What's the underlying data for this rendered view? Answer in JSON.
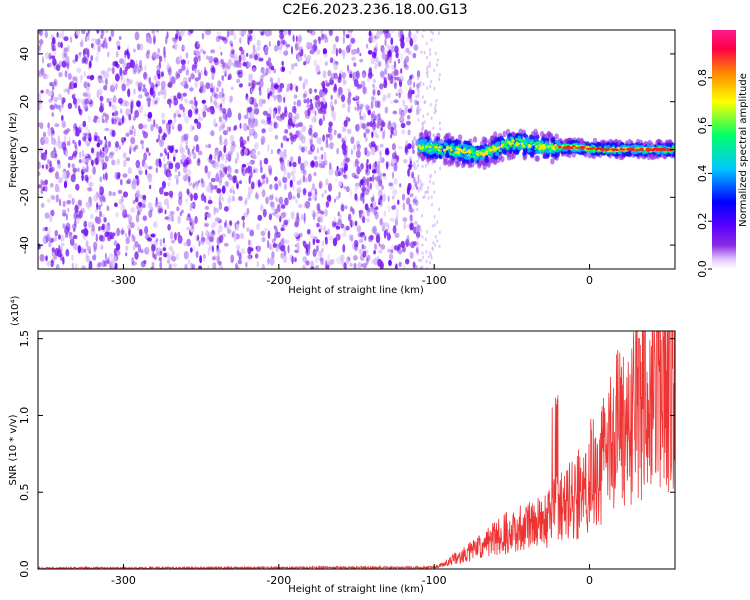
{
  "figure_title": "C2E6.2023.236.18.00.G13",
  "chart_data": [
    {
      "type": "heatmap",
      "xlabel": "Height of straight line (km)",
      "ylabel": "Frequency (Hz)",
      "xlim": [
        -355,
        55
      ],
      "ylim": [
        -50,
        50
      ],
      "xticks": [
        -300,
        -200,
        -100,
        0
      ],
      "xtick_labels": [
        "-300",
        "-200",
        "-100",
        "0"
      ],
      "yticks": [
        40,
        20,
        0,
        -20,
        -40
      ],
      "ytick_labels": [
        "40",
        "20",
        "0",
        "-20",
        "-40"
      ],
      "colorbar": {
        "label": "Normalized spectral amplitude",
        "range": [
          0,
          1
        ],
        "ticks": [
          0.0,
          0.2,
          0.4,
          0.6,
          0.8
        ],
        "tick_labels": [
          "0.0",
          "0.2",
          "0.4",
          "0.6",
          "0.8"
        ],
        "colormap": [
          "#ffffff",
          "#e3c8ff",
          "#8a2be2",
          "#5a00ff",
          "#0000ff",
          "#00c8ff",
          "#00ff66",
          "#ffff00",
          "#ff8800",
          "#ff0044",
          "#ff1a8c"
        ]
      },
      "description_values": {
        "noise_region_x": [
          -355,
          -100
        ],
        "signal_track_x": [
          -110,
          55
        ],
        "signal_frequency_hz": [
          [
            -110,
            1.5
          ],
          [
            -90,
            0
          ],
          [
            -70,
            -2
          ],
          [
            -50,
            3
          ],
          [
            -30,
            1
          ],
          [
            -10,
            1
          ],
          [
            10,
            0
          ],
          [
            30,
            0
          ],
          [
            55,
            0
          ]
        ]
      }
    },
    {
      "type": "line",
      "xlabel": "Height of straight line (km)",
      "ylabel": "SNR (10 * v/v)",
      "yscale_label": "(x10⁴)",
      "xlim": [
        -355,
        55
      ],
      "ylim": [
        0,
        1.55
      ],
      "xticks": [
        -300,
        -200,
        -100,
        0
      ],
      "xtick_labels": [
        "-300",
        "-200",
        "-100",
        "0"
      ],
      "yticks": [
        0.0,
        0.5,
        1.0,
        1.5
      ],
      "ytick_labels": [
        "0.0",
        "0.5",
        "1.0",
        "1.5"
      ],
      "color": "#ee3333",
      "trend": {
        "x": [
          -355,
          -100,
          -90,
          -70,
          -50,
          -30,
          -20,
          -10,
          0,
          10,
          20,
          30,
          40,
          50,
          55
        ],
        "y": [
          0.005,
          0.01,
          0.05,
          0.15,
          0.25,
          0.3,
          0.4,
          0.45,
          0.6,
          0.75,
          0.95,
          1.05,
          1.15,
          1.2,
          1.22
        ]
      }
    }
  ]
}
